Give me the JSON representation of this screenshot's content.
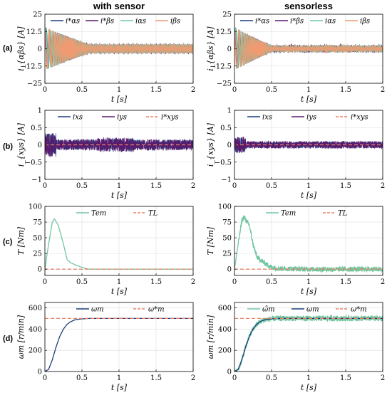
{
  "figure": {
    "col_titles": [
      "with sensor",
      "sensorless"
    ],
    "row_labels": [
      "(a)",
      "(b)",
      "(c)",
      "(d)"
    ]
  },
  "colors": {
    "blue": "#1a3f7a",
    "purple": "#5b1a6e",
    "teal": "#72c7a0",
    "orange": "#f09a72",
    "dashed_red": "#e8836b",
    "magenta": "#b0007a"
  },
  "chart_data": [
    {
      "id": "a-with-sensor",
      "type": "line",
      "xlabel": "t [s]",
      "ylabel": "i_{αβs} [A]",
      "xlim": [
        0,
        2
      ],
      "ylim": [
        -25,
        25
      ],
      "xticks": [
        "0",
        "0.5",
        "1",
        "1.5",
        "2"
      ],
      "yticks": [
        "-25",
        "-12.5",
        "0",
        "12.5",
        "25"
      ],
      "grid": true,
      "legend": "top",
      "series": [
        {
          "name": "i*αs",
          "color": "#1a3f7a",
          "style": "solid"
        },
        {
          "name": "i*βs",
          "color": "#5b1a6e",
          "style": "solid"
        },
        {
          "name": "iαs",
          "color": "#72c7a0",
          "style": "solid"
        },
        {
          "name": "iβs",
          "color": "#f09a72",
          "style": "solid"
        }
      ],
      "peak_amplitude": 15,
      "settled_amplitude": 3,
      "settle_time": 0.6
    },
    {
      "id": "a-sensorless",
      "type": "line",
      "xlabel": "t [s]",
      "ylabel": "i_{αβs} [A]",
      "xlim": [
        0,
        2
      ],
      "ylim": [
        -25,
        25
      ],
      "xticks": [
        "0",
        "0.5",
        "1",
        "1.5",
        "2"
      ],
      "yticks": [
        "-25",
        "-12.5",
        "0",
        "12.5",
        "25"
      ],
      "grid": true,
      "legend": "top",
      "series": [
        {
          "name": "i*αs",
          "color": "#1a3f7a",
          "style": "solid"
        },
        {
          "name": "i*βs",
          "color": "#5b1a6e",
          "style": "solid"
        },
        {
          "name": "iαs",
          "color": "#72c7a0",
          "style": "solid"
        },
        {
          "name": "iβs",
          "color": "#f09a72",
          "style": "solid"
        }
      ],
      "peak_amplitude": 15,
      "settled_amplitude": 2,
      "settle_time": 0.5
    },
    {
      "id": "b-with-sensor",
      "type": "line",
      "xlabel": "t [s]",
      "ylabel": "i_{xys} [A]",
      "xlim": [
        0,
        2
      ],
      "ylim": [
        -1,
        1
      ],
      "xticks": [
        "0",
        "0.5",
        "1",
        "1.5",
        "2"
      ],
      "yticks": [
        "-1",
        "-0.5",
        "0",
        "0.5",
        "1"
      ],
      "grid": true,
      "legend": "top",
      "series": [
        {
          "name": "ixs",
          "color": "#1a3f7a",
          "style": "solid"
        },
        {
          "name": "iys",
          "color": "#5b1a6e",
          "style": "solid"
        },
        {
          "name": "i*xys",
          "color": "#e8836b",
          "style": "dashed",
          "value": 0
        }
      ],
      "noise_amplitude": 0.15
    },
    {
      "id": "b-sensorless",
      "type": "line",
      "xlabel": "t [s]",
      "ylabel": "i_{xys} [A]",
      "xlim": [
        0,
        2
      ],
      "ylim": [
        -1,
        1
      ],
      "xticks": [
        "0",
        "0.5",
        "1",
        "1.5",
        "2"
      ],
      "yticks": [
        "-1",
        "-0.5",
        "0",
        "0.5",
        "1"
      ],
      "grid": true,
      "legend": "top",
      "series": [
        {
          "name": "ixs",
          "color": "#1a3f7a",
          "style": "solid"
        },
        {
          "name": "iys",
          "color": "#5b1a6e",
          "style": "solid"
        },
        {
          "name": "i*xys",
          "color": "#e8836b",
          "style": "dashed",
          "value": 0
        }
      ],
      "noise_amplitude": 0.1
    },
    {
      "id": "c-with-sensor",
      "type": "line",
      "xlabel": "t [s]",
      "ylabel": "T [Nm]",
      "xlim": [
        0,
        2
      ],
      "ylim": [
        -10,
        100
      ],
      "xticks": [
        "0",
        "0.5",
        "1",
        "1.5",
        "2"
      ],
      "yticks": [
        "0",
        "25",
        "50",
        "75",
        "100"
      ],
      "grid": true,
      "legend": "top",
      "series": [
        {
          "name": "Tem",
          "color": "#72c7a0",
          "style": "solid",
          "x": [
            0,
            0.05,
            0.1,
            0.13,
            0.18,
            0.25,
            0.3,
            0.35,
            0.45,
            0.55,
            0.6,
            1.0,
            1.5,
            2.0
          ],
          "y": [
            0,
            40,
            75,
            80,
            70,
            40,
            15,
            10,
            5,
            1,
            0,
            0,
            0,
            0
          ]
        },
        {
          "name": "TL",
          "color": "#e8836b",
          "style": "dashed",
          "value": 0
        }
      ]
    },
    {
      "id": "c-sensorless",
      "type": "line",
      "xlabel": "t [s]",
      "ylabel": "T [Nm]",
      "xlim": [
        0,
        2
      ],
      "ylim": [
        -10,
        100
      ],
      "xticks": [
        "0",
        "0.5",
        "1",
        "1.5",
        "2"
      ],
      "yticks": [
        "0",
        "25",
        "50",
        "75",
        "100"
      ],
      "grid": true,
      "legend": "top",
      "series": [
        {
          "name": "Tem",
          "color": "#72c7a0",
          "style": "solid",
          "x": [
            0,
            0.05,
            0.1,
            0.13,
            0.17,
            0.2,
            0.25,
            0.3,
            0.4,
            0.5,
            0.6,
            1.0,
            1.5,
            2.0
          ],
          "y": [
            0,
            40,
            78,
            83,
            75,
            70,
            40,
            20,
            10,
            3,
            1,
            0,
            0,
            0
          ],
          "noise_amplitude": 4
        },
        {
          "name": "TL",
          "color": "#e8836b",
          "style": "dashed",
          "value": 0
        }
      ]
    },
    {
      "id": "d-with-sensor",
      "type": "line",
      "xlabel": "t [s]",
      "ylabel": "ωm [r/min]",
      "xlim": [
        0,
        2
      ],
      "ylim": [
        0,
        650
      ],
      "xticks": [
        "0",
        "0.5",
        "1",
        "1.5",
        "2"
      ],
      "yticks": [
        "0",
        "200",
        "400",
        "600"
      ],
      "grid": true,
      "legend": "top",
      "series": [
        {
          "name": "ωm",
          "color": "#1a3f7a",
          "style": "solid",
          "x": [
            0,
            0.05,
            0.1,
            0.15,
            0.2,
            0.25,
            0.3,
            0.35,
            0.4,
            0.45,
            0.5,
            0.6,
            1.0,
            2.0
          ],
          "y": [
            0,
            20,
            110,
            230,
            330,
            400,
            445,
            470,
            485,
            492,
            496,
            500,
            500,
            500
          ]
        },
        {
          "name": "ω*m",
          "color": "#e8836b",
          "style": "dashed",
          "value": 500
        }
      ]
    },
    {
      "id": "d-sensorless",
      "type": "line",
      "xlabel": "t [s]",
      "ylabel": "ωm [r/min]",
      "xlim": [
        0,
        2
      ],
      "ylim": [
        0,
        650
      ],
      "xticks": [
        "0",
        "0.5",
        "1",
        "1.5",
        "2"
      ],
      "yticks": [
        "0",
        "200",
        "400",
        "600"
      ],
      "grid": true,
      "legend": "top",
      "series": [
        {
          "name": "ω̂m",
          "color": "#72c7a0",
          "style": "solid",
          "x": [
            0,
            0.05,
            0.1,
            0.15,
            0.2,
            0.25,
            0.3,
            0.35,
            0.4,
            0.45,
            0.5,
            0.6,
            1.0,
            2.0
          ],
          "y": [
            0,
            20,
            110,
            230,
            330,
            400,
            445,
            470,
            485,
            492,
            496,
            500,
            500,
            500
          ],
          "noise_amplitude": 25
        },
        {
          "name": "ωm",
          "color": "#1a3f7a",
          "style": "solid",
          "x": [
            0,
            0.05,
            0.1,
            0.15,
            0.2,
            0.25,
            0.3,
            0.35,
            0.4,
            0.45,
            0.5,
            0.6,
            1.0,
            2.0
          ],
          "y": [
            0,
            20,
            110,
            230,
            330,
            400,
            445,
            470,
            485,
            492,
            496,
            500,
            500,
            500
          ]
        },
        {
          "name": "ω*m",
          "color": "#e8836b",
          "style": "dashed",
          "value": 500
        }
      ]
    }
  ]
}
